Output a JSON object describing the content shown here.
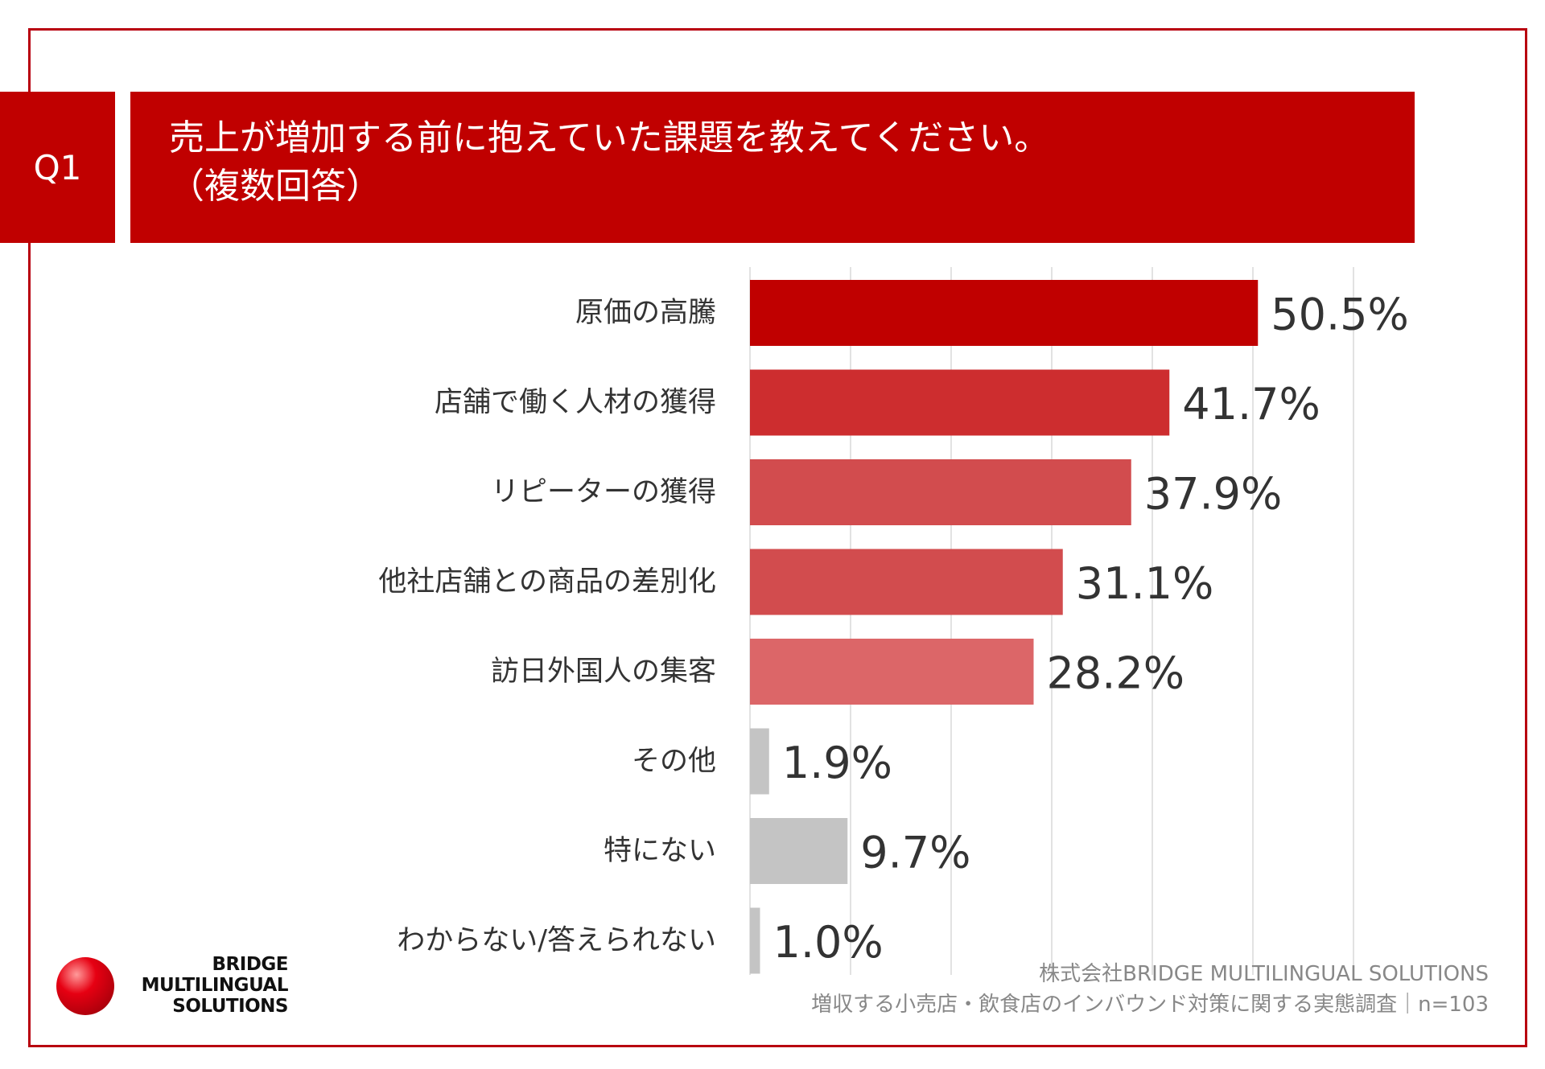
{
  "header": {
    "q_label": "Q1",
    "title_line1": "売上が増加する前に抱えていた課題を教えてください。",
    "title_line2": "（複数回答）"
  },
  "chart_data": {
    "type": "bar",
    "orientation": "horizontal",
    "categories": [
      "原価の高騰",
      "店舗で働く人材の獲得",
      "リピーターの獲得",
      "他社店舗との商品の差別化",
      "訪日外国人の集客",
      "その他",
      "特にない",
      "わからない/答えられない"
    ],
    "values": [
      50.5,
      41.7,
      37.9,
      31.1,
      28.2,
      1.9,
      9.7,
      1.0
    ],
    "value_labels": [
      "50.5%",
      "41.7%",
      "37.9%",
      "31.1%",
      "28.2%",
      "1.9%",
      "9.7%",
      "1.0%"
    ],
    "colors": [
      "#c00000",
      "#cd2d2f",
      "#d24c4e",
      "#d24c4e",
      "#dc6668",
      "#c4c4c4",
      "#c4c4c4",
      "#c4c4c4"
    ],
    "xlim": [
      0,
      60
    ],
    "grid": true,
    "gridline_step": 10
  },
  "logo": {
    "line1": "BRIDGE",
    "line2": "MULTILINGUAL",
    "line3": "SOLUTIONS"
  },
  "source": {
    "line1": "株式会社BRIDGE MULTILINGUAL SOLUTIONS",
    "line2": "増収する小売店・飲食店のインバウンド対策に関する実態調査｜n=103"
  }
}
